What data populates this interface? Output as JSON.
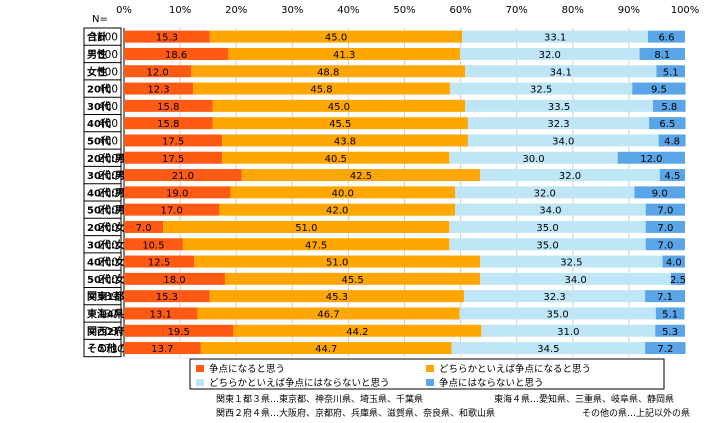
{
  "chart_data": {
    "type": "bar",
    "orientation": "horizontal",
    "stacked": true,
    "percent": true,
    "xlim": [
      0,
      100
    ],
    "ticks": [
      "0%",
      "10%",
      "20%",
      "30%",
      "40%",
      "50%",
      "60%",
      "70%",
      "80%",
      "90%",
      "100%"
    ],
    "n_header": "N=",
    "categories": [
      "合計",
      "男性",
      "女性",
      "20代",
      "30代",
      "40代",
      "50代",
      "20代:男性",
      "30代:男性",
      "40代:男性",
      "50代:男性",
      "20代:女性",
      "30代:女性",
      "40代:女性",
      "50代:女性",
      "関東1都3県",
      "東海4県",
      "関西2府4県",
      "その他の県"
    ],
    "n": [
      "1600",
      "800",
      "800",
      "400",
      "400",
      "400",
      "400",
      "200",
      "200",
      "200",
      "200",
      "200",
      "200",
      "200",
      "200",
      "589",
      "137",
      "303",
      "571"
    ],
    "series": [
      {
        "name": "争点になると思う",
        "color": "#ff5a14",
        "values": [
          15.3,
          18.6,
          12.0,
          12.3,
          15.8,
          15.8,
          17.5,
          17.5,
          21.0,
          19.0,
          17.0,
          7.0,
          10.5,
          12.5,
          18.0,
          15.3,
          13.1,
          19.5,
          13.7
        ],
        "labels": [
          "15.3",
          "18.6",
          "12.0",
          "12.3",
          "15.8",
          "15.8",
          "17.5",
          "17.5",
          "21.0",
          "19.0",
          "17.0",
          "7.0",
          "10.5",
          "12.5",
          "18.0",
          "15.3",
          "13.1",
          "19.5",
          "13.7"
        ]
      },
      {
        "name": "どちらかといえば争点になると思う",
        "color": "#ffa600",
        "values": [
          45.0,
          41.3,
          48.8,
          45.8,
          45.0,
          45.5,
          43.8,
          40.5,
          42.5,
          40.0,
          42.0,
          51.0,
          47.5,
          51.0,
          45.5,
          45.3,
          46.7,
          44.2,
          44.7
        ],
        "labels": [
          "45.0",
          "41.3",
          "48.8",
          "45.8",
          "45.0",
          "45.5",
          "43.8",
          "40.5",
          "42.5",
          "40.0",
          "42.0",
          "51.0",
          "47.5",
          "51.0",
          "45.5",
          "45.3",
          "46.7",
          "44.2",
          "44.7"
        ]
      },
      {
        "name": "どちらかといえば争点にはならないと思う",
        "color": "#bfe6f7",
        "values": [
          33.1,
          32.0,
          34.1,
          32.5,
          33.5,
          32.3,
          34.0,
          30.0,
          32.0,
          32.0,
          34.0,
          35.0,
          35.0,
          32.5,
          34.0,
          32.3,
          35.0,
          31.0,
          34.5
        ],
        "labels": [
          "33.1",
          "32.0",
          "34.1",
          "32.5",
          "33.5",
          "32.3",
          "34.0",
          "30.0",
          "32.0",
          "32.0",
          "34.0",
          "35.0",
          "35.0",
          "32.5",
          "34.0",
          "32.3",
          "35.0",
          "31.0",
          "34.5"
        ]
      },
      {
        "name": "争点にはならないと思う",
        "color": "#5aa5e8",
        "values": [
          6.6,
          8.1,
          5.1,
          9.5,
          5.8,
          6.5,
          4.8,
          12.0,
          4.5,
          9.0,
          7.0,
          7.0,
          7.0,
          4.0,
          2.5,
          7.1,
          5.1,
          5.3,
          7.2
        ],
        "labels": [
          "6.6",
          "8.1",
          "5.1",
          "9.5",
          "5.8",
          "6.5",
          "4.8",
          "12.0",
          "4.5",
          "9.0",
          "7.0",
          "7.0",
          "7.0",
          "4.0",
          "2.5",
          "7.1",
          "5.1",
          "5.3",
          "7.2"
        ]
      }
    ],
    "legend_position": "bottom",
    "grid": true,
    "notes": [
      "関東１都３県…東京都、神奈川県、埼玉県、千葉県",
      "東海４県…愛知県、三重県、岐阜県、静岡県",
      "関西２府４県…大阪府、京都府、兵庫県、滋賀県、奈良県、和歌山県",
      "その他の県…上記以外の県"
    ]
  }
}
